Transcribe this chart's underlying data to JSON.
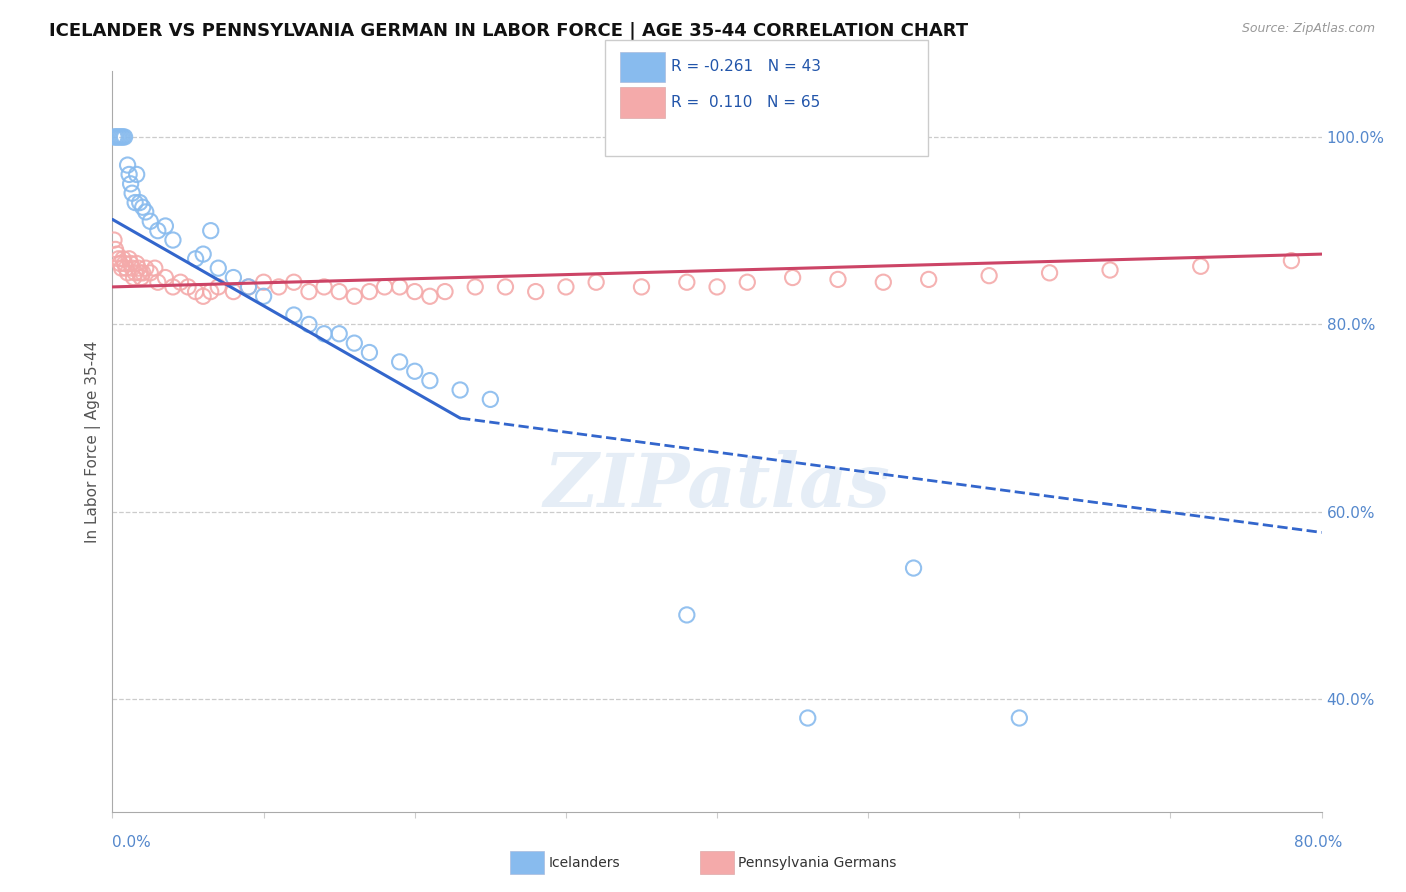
{
  "title": "ICELANDER VS PENNSYLVANIA GERMAN IN LABOR FORCE | AGE 35-44 CORRELATION CHART",
  "source": "Source: ZipAtlas.com",
  "ylabel": "In Labor Force | Age 35-44",
  "legend_icelanders": "Icelanders",
  "legend_pa_german": "Pennsylvania Germans",
  "r_icelanders": -0.261,
  "n_icelanders": 43,
  "r_pa_german": 0.11,
  "n_pa_german": 65,
  "icelander_color": "#88bbee",
  "pa_german_color": "#f4aaaa",
  "icelander_line_color": "#3366cc",
  "pa_german_line_color": "#cc4466",
  "xlim": [
    0.0,
    0.8
  ],
  "ylim": [
    0.28,
    1.07
  ],
  "icelanders_x": [
    0.001,
    0.002,
    0.003,
    0.004,
    0.005,
    0.006,
    0.007,
    0.008,
    0.01,
    0.011,
    0.012,
    0.013,
    0.015,
    0.016,
    0.018,
    0.02,
    0.022,
    0.025,
    0.03,
    0.035,
    0.04,
    0.055,
    0.06,
    0.065,
    0.07,
    0.08,
    0.09,
    0.1,
    0.12,
    0.13,
    0.14,
    0.15,
    0.16,
    0.17,
    0.19,
    0.2,
    0.21,
    0.23,
    0.25,
    0.38,
    0.46,
    0.53,
    0.6
  ],
  "icelanders_y": [
    1.0,
    1.0,
    1.0,
    1.0,
    1.0,
    1.0,
    1.0,
    1.0,
    0.97,
    0.96,
    0.95,
    0.94,
    0.93,
    0.96,
    0.93,
    0.925,
    0.92,
    0.91,
    0.9,
    0.905,
    0.89,
    0.87,
    0.875,
    0.9,
    0.86,
    0.85,
    0.84,
    0.83,
    0.81,
    0.8,
    0.79,
    0.79,
    0.78,
    0.77,
    0.76,
    0.75,
    0.74,
    0.73,
    0.72,
    0.49,
    0.38,
    0.54,
    0.38
  ],
  "pa_german_x": [
    0.001,
    0.002,
    0.003,
    0.004,
    0.005,
    0.006,
    0.007,
    0.008,
    0.009,
    0.01,
    0.011,
    0.012,
    0.013,
    0.014,
    0.015,
    0.016,
    0.017,
    0.018,
    0.019,
    0.02,
    0.022,
    0.025,
    0.028,
    0.03,
    0.035,
    0.04,
    0.045,
    0.05,
    0.055,
    0.06,
    0.065,
    0.07,
    0.08,
    0.09,
    0.1,
    0.11,
    0.12,
    0.13,
    0.14,
    0.15,
    0.16,
    0.17,
    0.18,
    0.19,
    0.2,
    0.21,
    0.22,
    0.24,
    0.26,
    0.28,
    0.3,
    0.32,
    0.35,
    0.38,
    0.4,
    0.42,
    0.45,
    0.48,
    0.51,
    0.54,
    0.58,
    0.62,
    0.66,
    0.72,
    0.78
  ],
  "pa_german_y": [
    0.89,
    0.88,
    0.875,
    0.87,
    0.865,
    0.86,
    0.87,
    0.865,
    0.86,
    0.855,
    0.87,
    0.865,
    0.86,
    0.85,
    0.855,
    0.865,
    0.86,
    0.855,
    0.85,
    0.855,
    0.86,
    0.855,
    0.86,
    0.845,
    0.85,
    0.84,
    0.845,
    0.84,
    0.835,
    0.83,
    0.835,
    0.84,
    0.835,
    0.84,
    0.845,
    0.84,
    0.845,
    0.835,
    0.84,
    0.835,
    0.83,
    0.835,
    0.84,
    0.84,
    0.835,
    0.83,
    0.835,
    0.84,
    0.84,
    0.835,
    0.84,
    0.845,
    0.84,
    0.845,
    0.84,
    0.845,
    0.85,
    0.848,
    0.845,
    0.848,
    0.852,
    0.855,
    0.858,
    0.862,
    0.868
  ],
  "icelander_trend_x0": 0.0,
  "icelander_trend_y0": 0.912,
  "icelander_trend_x1": 0.23,
  "icelander_trend_y1": 0.7,
  "icelander_trend_x1_dash": 0.8,
  "icelander_trend_y1_dash": 0.578,
  "pa_trend_x0": 0.0,
  "pa_trend_y0": 0.84,
  "pa_trend_x1": 0.8,
  "pa_trend_y1": 0.875
}
